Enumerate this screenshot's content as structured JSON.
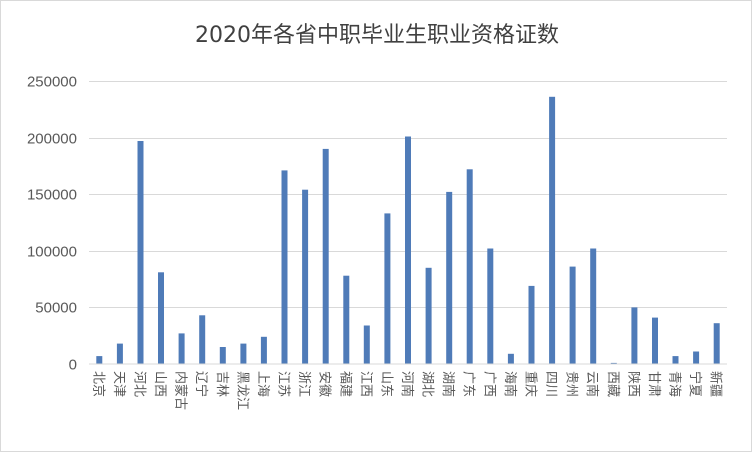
{
  "chart_data": {
    "type": "bar",
    "title": "2020年各省中职毕业生职业资格证数",
    "xlabel": "",
    "ylabel": "",
    "ylim": [
      0,
      250000
    ],
    "yticks": [
      0,
      50000,
      100000,
      150000,
      200000,
      250000
    ],
    "ytick_labels": [
      "0",
      "50000",
      "100000",
      "150000",
      "200000",
      "250000"
    ],
    "grid": true,
    "legend": "none",
    "bar_color": "#4f7bb8",
    "categories": [
      "北京",
      "天津",
      "河北",
      "山西",
      "内蒙古",
      "辽宁",
      "吉林",
      "黑龙江",
      "上海",
      "江苏",
      "浙江",
      "安徽",
      "福建",
      "江西",
      "山东",
      "河南",
      "湖北",
      "湖南",
      "广东",
      "广西",
      "海南",
      "重庆",
      "四川",
      "贵州",
      "云南",
      "西藏",
      "陕西",
      "甘肃",
      "青海",
      "宁夏",
      "新疆"
    ],
    "values": [
      7000,
      18000,
      197000,
      81000,
      27000,
      43000,
      15000,
      18000,
      24000,
      171000,
      154000,
      190000,
      78000,
      34000,
      133000,
      201000,
      85000,
      152000,
      172000,
      102000,
      9000,
      69000,
      236000,
      86000,
      102000,
      1000,
      50000,
      41000,
      7000,
      11000,
      36000
    ]
  }
}
